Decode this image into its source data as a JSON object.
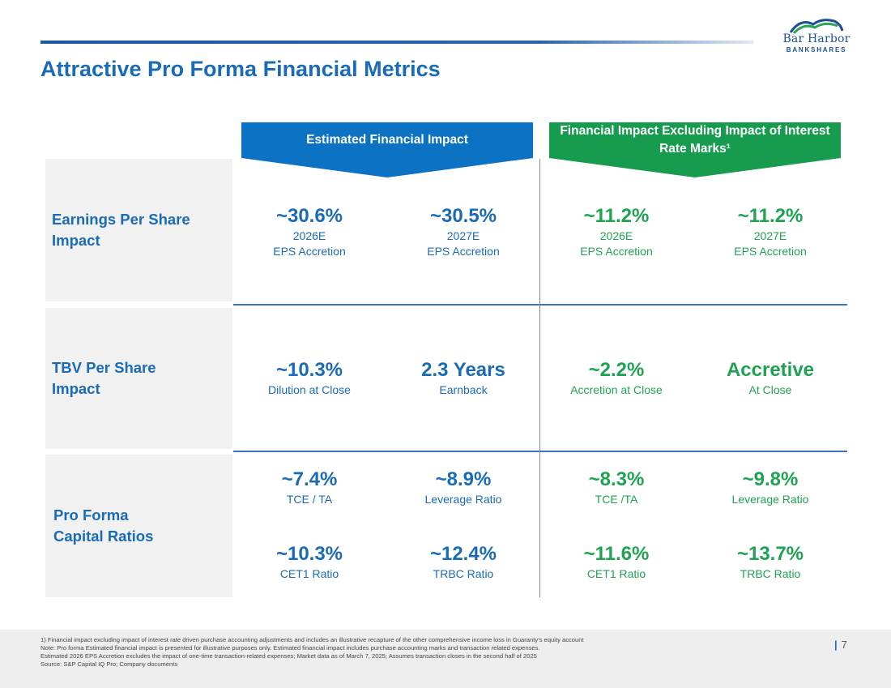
{
  "slide": {
    "title": "Attractive Pro Forma Financial Metrics",
    "page_number": "7"
  },
  "logo": {
    "line1": "Bar Harbor",
    "line2": "BANKSHARES"
  },
  "colors": {
    "blue": "#1a6bb5",
    "banner_blue": "#0c72c4",
    "green": "#1fa254",
    "banner_green": "#169b4f"
  },
  "headers": {
    "estimated": "Estimated Financial Impact",
    "excluding": "Financial Impact Excluding Impact of Interest Rate Marks¹"
  },
  "rows": [
    {
      "label": "Earnings Per Share Impact",
      "metrics": [
        {
          "value": "~30.6%",
          "sub1": "2026E",
          "sub2": "EPS Accretion"
        },
        {
          "value": "~30.5%",
          "sub1": "2027E",
          "sub2": "EPS Accretion"
        },
        {
          "value": "~11.2%",
          "sub1": "2026E",
          "sub2": "EPS Accretion"
        },
        {
          "value": "~11.2%",
          "sub1": "2027E",
          "sub2": "EPS Accretion"
        }
      ]
    },
    {
      "label": "TBV Per Share Impact",
      "metrics": [
        {
          "value": "~10.3%",
          "sub1": "Dilution at Close"
        },
        {
          "value": "2.3 Years",
          "sub1": "Earnback"
        },
        {
          "value": "~2.2%",
          "sub1": "Accretion at Close"
        },
        {
          "value": "Accretive",
          "sub1": "At Close"
        }
      ]
    },
    {
      "label": "Pro Forma Capital Ratios",
      "metrics": [
        {
          "value": "~7.4%",
          "sub1": "TCE / TA"
        },
        {
          "value": "~8.9%",
          "sub1": "Leverage Ratio"
        },
        {
          "value": "~8.3%",
          "sub1": "TCE /TA"
        },
        {
          "value": "~9.8%",
          "sub1": "Leverage Ratio"
        },
        {
          "value": "~10.3%",
          "sub1": "CET1 Ratio"
        },
        {
          "value": "~12.4%",
          "sub1": "TRBC Ratio"
        },
        {
          "value": "~11.6%",
          "sub1": "CET1 Ratio"
        },
        {
          "value": "~13.7%",
          "sub1": "TRBC Ratio"
        }
      ]
    }
  ],
  "footnotes": [
    "1)      Financial impact excluding impact of interest rate driven purchase accounting adjustments and includes an illustrative recapture of the other comprehensive income loss in Guaranty’s equity account",
    "Note: Pro forma Estimated financial impact is presented for illustrative purposes only. Estimated financial impact includes purchase accounting marks and transaction related expenses.",
    "Estimated 2026 EPS Accretion excludes the impact of one-time transaction-related expenses; Market data as of March 7, 2025; Assumes transaction closes in the second half of 2025",
    "Source: S&P Capital IQ Pro; Company documents"
  ]
}
